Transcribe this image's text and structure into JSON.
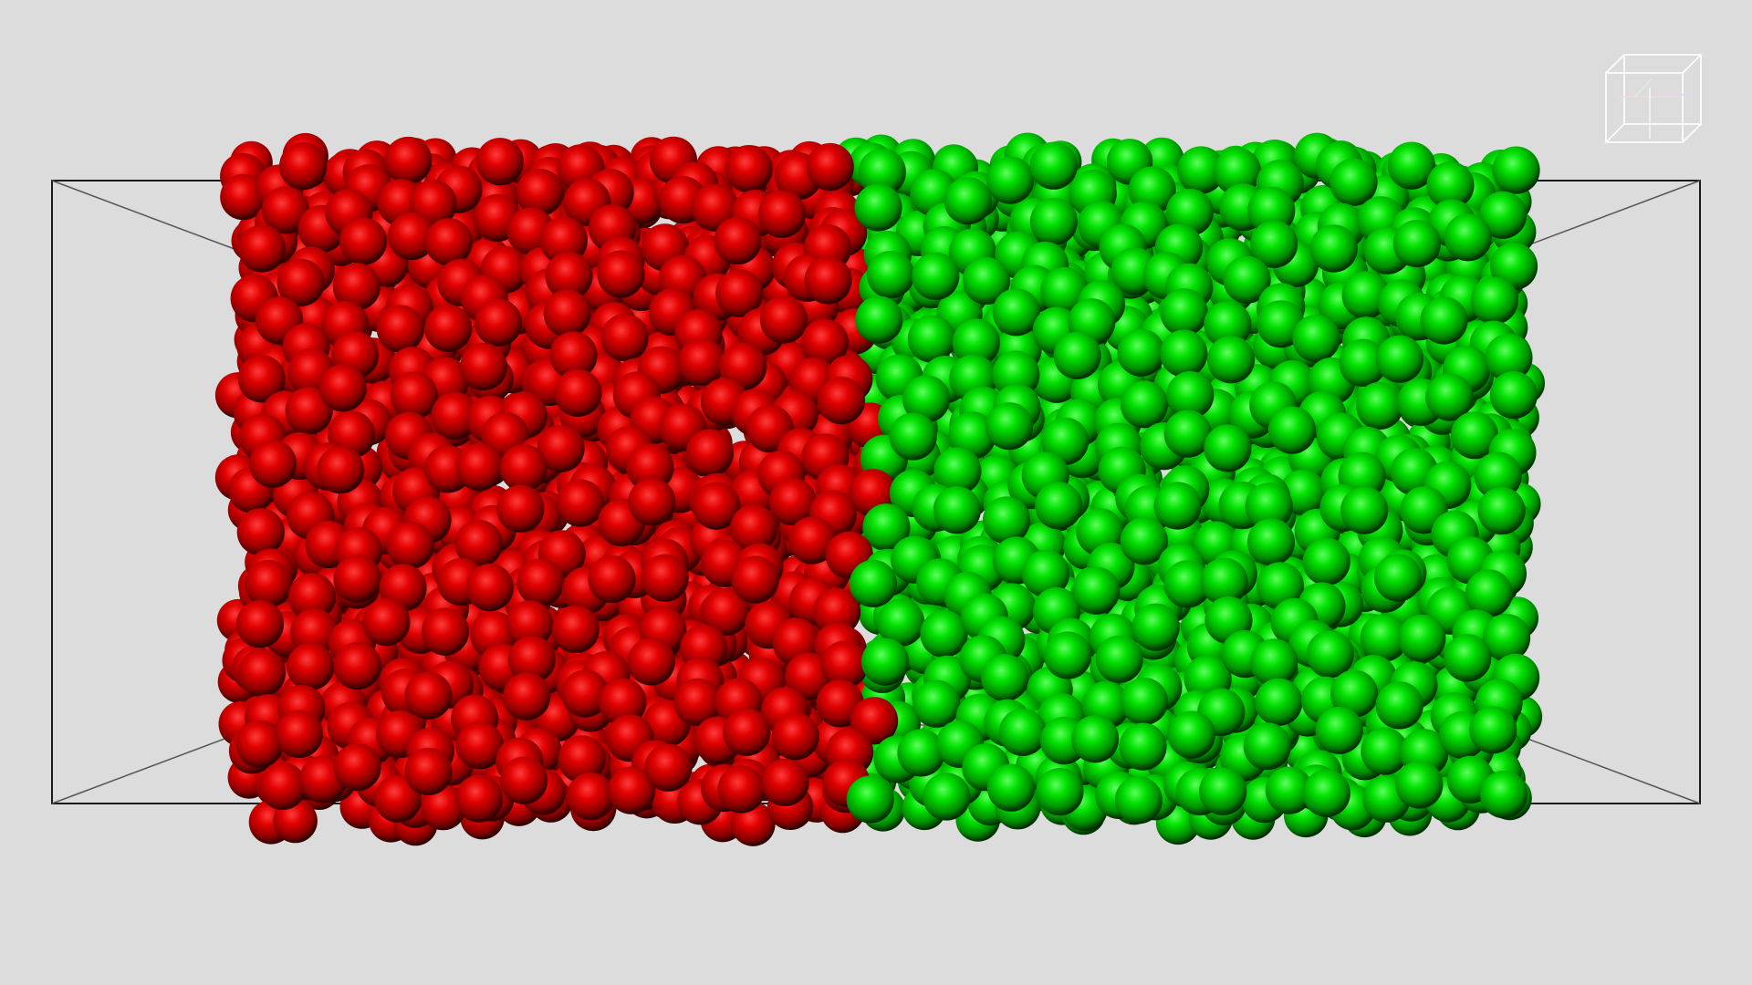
{
  "scene": {
    "background_color": "#dcdcdc",
    "box_edge_color": "#1a1a1a",
    "species": [
      {
        "name": "red",
        "color": "#e00000"
      },
      {
        "name": "green",
        "color": "#00e000"
      }
    ]
  },
  "orientation_gizmo": {
    "edge_color": "#ffffff"
  }
}
